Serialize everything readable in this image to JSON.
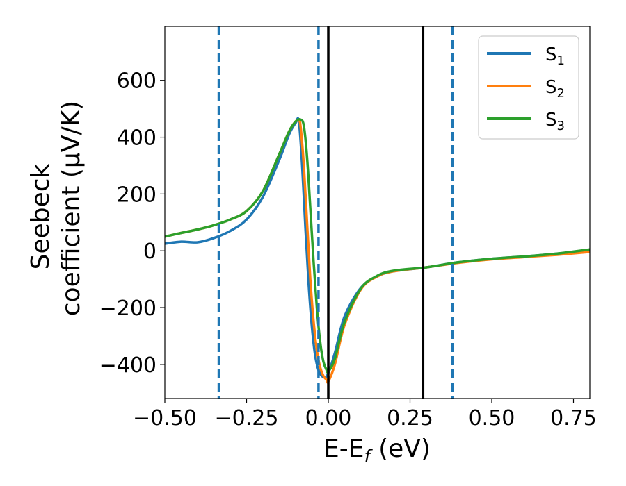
{
  "chart_data": {
    "type": "line",
    "xlabel": "E-E_f (eV)",
    "xlabel_main": "E-E",
    "xlabel_sub": "f",
    "xlabel_tail": " (eV)",
    "ylabel_line1": "Seebeck",
    "ylabel_line2": "coefficient  (μV/K)",
    "xlim": [
      -0.5,
      0.8
    ],
    "ylim": [
      -520,
      790
    ],
    "xticks": [
      -0.5,
      -0.25,
      0.0,
      0.25,
      0.5,
      0.75
    ],
    "xtick_labels": [
      "−0.50",
      "−0.25",
      "0.00",
      "0.25",
      "0.50",
      "0.75"
    ],
    "yticks": [
      -400,
      -200,
      0,
      200,
      400,
      600
    ],
    "ytick_labels": [
      "−400",
      "−200",
      "0",
      "200",
      "400",
      "600"
    ],
    "grid": false,
    "legend_position": "top-right",
    "vlines": [
      {
        "x": -0.335,
        "style": "dashed",
        "color": "#1f77b4"
      },
      {
        "x": -0.03,
        "style": "dashed",
        "color": "#1f77b4"
      },
      {
        "x": 0.0,
        "style": "solid",
        "color": "#000000"
      },
      {
        "x": 0.29,
        "style": "solid",
        "color": "#000000"
      },
      {
        "x": 0.38,
        "style": "dashed",
        "color": "#1f77b4"
      }
    ],
    "series": [
      {
        "name": "S1",
        "label_main": "S",
        "label_sub": "1",
        "color": "#1f77b4",
        "x": [
          -0.5,
          -0.45,
          -0.4,
          -0.35,
          -0.3,
          -0.25,
          -0.2,
          -0.15,
          -0.12,
          -0.1,
          -0.09,
          -0.08,
          -0.07,
          -0.06,
          -0.05,
          -0.04,
          -0.03,
          -0.02,
          -0.01,
          0.0,
          0.02,
          0.05,
          0.1,
          0.15,
          0.2,
          0.3,
          0.4,
          0.5,
          0.6,
          0.7,
          0.8
        ],
        "y": [
          25,
          32,
          30,
          45,
          70,
          110,
          190,
          320,
          410,
          450,
          455,
          300,
          80,
          -120,
          -270,
          -370,
          -420,
          -440,
          -445,
          -430,
          -360,
          -230,
          -130,
          -90,
          -72,
          -58,
          -40,
          -28,
          -20,
          -10,
          0
        ]
      },
      {
        "name": "S2",
        "label_main": "S",
        "label_sub": "2",
        "color": "#ff7f0e",
        "x": [
          -0.5,
          -0.45,
          -0.4,
          -0.35,
          -0.3,
          -0.25,
          -0.2,
          -0.15,
          -0.12,
          -0.1,
          -0.09,
          -0.085,
          -0.075,
          -0.065,
          -0.055,
          -0.045,
          -0.035,
          -0.025,
          -0.015,
          -0.005,
          0.0,
          0.02,
          0.05,
          0.1,
          0.15,
          0.2,
          0.3,
          0.4,
          0.5,
          0.6,
          0.7,
          0.8
        ],
        "y": [
          50,
          63,
          75,
          90,
          110,
          140,
          210,
          340,
          420,
          455,
          458,
          440,
          300,
          100,
          -100,
          -250,
          -350,
          -410,
          -440,
          -455,
          -460,
          -400,
          -260,
          -135,
          -90,
          -72,
          -58,
          -42,
          -30,
          -22,
          -14,
          -4
        ]
      },
      {
        "name": "S3",
        "label_main": "S",
        "label_sub": "3",
        "color": "#2ca02c",
        "x": [
          -0.5,
          -0.45,
          -0.4,
          -0.35,
          -0.3,
          -0.25,
          -0.2,
          -0.15,
          -0.12,
          -0.1,
          -0.085,
          -0.075,
          -0.065,
          -0.055,
          -0.045,
          -0.035,
          -0.025,
          -0.015,
          -0.005,
          0.0,
          0.02,
          0.05,
          0.1,
          0.15,
          0.2,
          0.3,
          0.4,
          0.5,
          0.6,
          0.7,
          0.8
        ],
        "y": [
          50,
          63,
          75,
          90,
          110,
          140,
          210,
          340,
          420,
          455,
          462,
          440,
          330,
          150,
          -40,
          -200,
          -320,
          -390,
          -420,
          -425,
          -380,
          -250,
          -132,
          -88,
          -70,
          -58,
          -40,
          -28,
          -20,
          -10,
          5
        ]
      }
    ]
  }
}
